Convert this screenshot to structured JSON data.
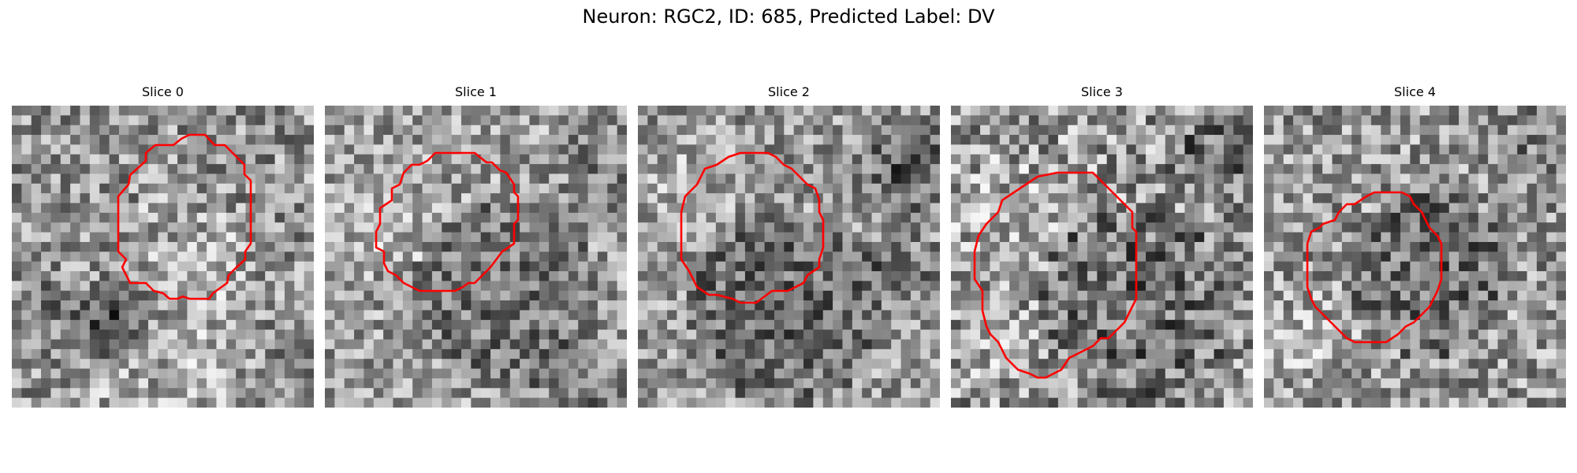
{
  "figure": {
    "title": "Neuron: RGC2, ID: 685, Predicted Label: DV"
  },
  "panels": [
    {
      "title": "Slice 0"
    },
    {
      "title": "Slice 1"
    },
    {
      "title": "Slice 2"
    },
    {
      "title": "Slice 3"
    },
    {
      "title": "Slice 4"
    }
  ],
  "colors": {
    "contour": "#ff0000",
    "background": "#ffffff"
  }
}
